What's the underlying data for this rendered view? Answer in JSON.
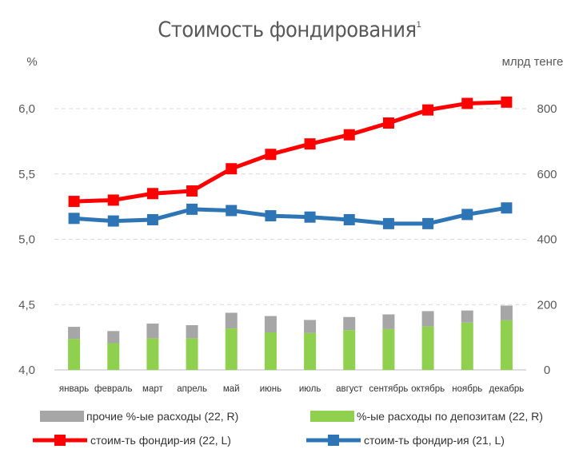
{
  "chart_data": {
    "type": "bar+line",
    "title": "Стоимость фондирования",
    "title_superscript": "1",
    "left_axis_unit": "%",
    "right_axis_unit": "млрд тенге",
    "left_ylim": [
      4.0,
      6.0
    ],
    "left_ticks": [
      "6,0",
      "5,5",
      "5,0",
      "4,5",
      "4,0"
    ],
    "right_ylim": [
      0,
      800
    ],
    "right_ticks": [
      "800",
      "600",
      "400",
      "200",
      "0"
    ],
    "categories": [
      "январь",
      "февраль",
      "март",
      "апрель",
      "май",
      "июнь",
      "июль",
      "август",
      "сентябрь",
      "октябрь",
      "ноябрь",
      "декабрь"
    ],
    "bar_series": [
      {
        "name": "%-ые расходы по депозитам (22, R)",
        "color": "#8fd14f",
        "axis": "right",
        "values": [
          95,
          82,
          97,
          97,
          127,
          115,
          113,
          122,
          125,
          133,
          145,
          152
        ]
      },
      {
        "name": "прочие %-ые расходы (22, R)",
        "color": "#a6a6a6",
        "axis": "right",
        "values": [
          37,
          37,
          45,
          40,
          48,
          50,
          40,
          40,
          45,
          47,
          37,
          45
        ]
      }
    ],
    "line_series": [
      {
        "name": "стоим-ть фондир-ия (22, L)",
        "color": "#ff0000",
        "axis": "left",
        "values": [
          5.29,
          5.3,
          5.35,
          5.37,
          5.54,
          5.65,
          5.73,
          5.8,
          5.89,
          5.99,
          6.04,
          6.05
        ]
      },
      {
        "name": "стоим-ть фондир-ия (21, L)",
        "color": "#2e75b6",
        "axis": "left",
        "values": [
          5.16,
          5.14,
          5.15,
          5.23,
          5.22,
          5.18,
          5.17,
          5.15,
          5.12,
          5.12,
          5.19,
          5.24
        ]
      }
    ],
    "grid": "horizontal-dashed",
    "legend_position": "bottom"
  }
}
